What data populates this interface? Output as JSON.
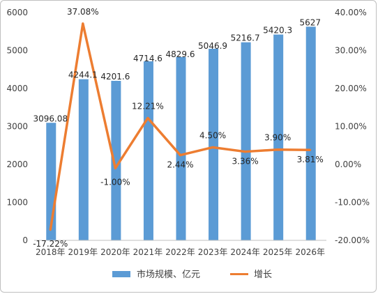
{
  "colors": {
    "bar": "#5b9bd5",
    "line": "#ed7d31",
    "grid": "#d9d9d9",
    "axis": "#bfbfbf"
  },
  "chart_data": {
    "type": "bar",
    "categories": [
      "2018年",
      "2019年",
      "2020年",
      "2021年",
      "2022年",
      "2023年",
      "2024年",
      "2025年",
      "2026年"
    ],
    "series": [
      {
        "name": "市场规模、亿元",
        "type": "bar",
        "axis": "left",
        "values": [
          3096.08,
          4244.1,
          4201.6,
          4714.6,
          4829.6,
          5046.9,
          5216.7,
          5420.3,
          5627
        ],
        "labels": [
          "3096.08",
          "4244.1",
          "4201.6",
          "4714.6",
          "4829.6",
          "5046.9",
          "5216.7",
          "5420.3",
          "5627"
        ]
      },
      {
        "name": "增长",
        "type": "line",
        "axis": "right",
        "values": [
          -17.22,
          37.08,
          -1.0,
          12.21,
          2.44,
          4.5,
          3.36,
          3.9,
          3.81
        ],
        "labels": [
          "-17.22%",
          "37.08%",
          "-1.00%",
          "12.21%",
          "2.44%",
          "4.50%",
          "3.36%",
          "3.90%",
          "3.81%"
        ]
      }
    ],
    "y_left": {
      "min": 0,
      "max": 6000,
      "ticks": [
        "0",
        "1000",
        "2000",
        "3000",
        "4000",
        "5000",
        "6000"
      ]
    },
    "y_right": {
      "min": -20,
      "max": 40,
      "ticks": [
        "-20.00%",
        "-10.00%",
        "0.00%",
        "10.00%",
        "20.00%",
        "30.00%",
        "40.00%"
      ]
    },
    "grid": false,
    "legend": {
      "position": "bottom",
      "items": [
        "市场规模、亿元",
        "增长"
      ]
    }
  }
}
